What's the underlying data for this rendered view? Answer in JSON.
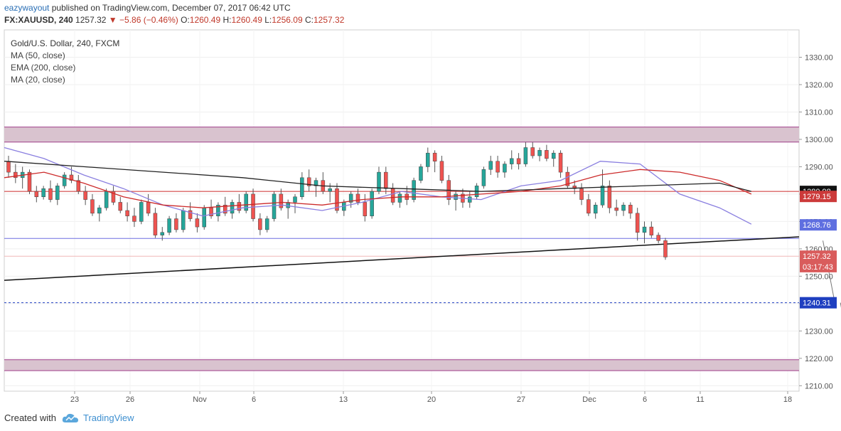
{
  "header": {
    "user": "eazywayout",
    "published_text": "published on TradingView.com, December 07, 2017 06:42 UTC",
    "symbol": "FX:XAUUSD, 240",
    "last": "1257.32",
    "change": "−5.86 (−0.46%)",
    "ohlc": {
      "o_label": "O:",
      "o": "1260.49",
      "h_label": "H:",
      "h": "1260.49",
      "l_label": "L:",
      "l": "1256.09",
      "c_label": "C:",
      "c": "1257.32"
    }
  },
  "legend": {
    "title": "Gold/U.S. Dollar, 240, FXCM",
    "items": [
      "MA (50, close)",
      "EMA (200, close)",
      "MA (20, close)"
    ]
  },
  "footer": {
    "created_with": "Created with",
    "brand": "TradingView"
  },
  "colors": {
    "up": "#26a69a",
    "down": "#ef5350",
    "ma50": "#cc2a2a",
    "ema200": "#222222",
    "ma20": "#8a7fe0",
    "zone_fill": "#d9c3cf",
    "zone_edge": "#a03e8a",
    "support_blue": "#6f6fe0",
    "target_blue": "#1f3fc0"
  },
  "chart_data": {
    "type": "candlestick",
    "timeframe": "240",
    "ylim": [
      1208,
      1340
    ],
    "yticks": [
      "1330.00",
      "1320.00",
      "1310.00",
      "1300.00",
      "1290.00",
      "1280.00",
      "1270.00",
      "1260.00",
      "1250.00",
      "1240.00",
      "1230.00",
      "1220.00",
      "1210.00"
    ],
    "xticks": [
      "23",
      "26",
      "Nov",
      "6",
      "13",
      "20",
      "27",
      "Dec",
      "6",
      "11",
      "18"
    ],
    "price_labels": [
      {
        "text": "1280.98",
        "value": 1280.98,
        "bg": "#111111"
      },
      {
        "text": "1279.15",
        "value": 1279.15,
        "bg": "#cc3a3a"
      },
      {
        "text": "1268.76",
        "value": 1268.76,
        "bg": "#5f6fe0"
      },
      {
        "text": "1257.32",
        "value": 1257.32,
        "bg": "#d95c5c"
      },
      {
        "text": "03:17:43",
        "value": 1253.5,
        "bg": "#d95c5c"
      },
      {
        "text": "1240.31",
        "value": 1240.31,
        "bg": "#1f3fc0"
      }
    ],
    "zones": [
      {
        "top": 1304.5,
        "bottom": 1299.0
      },
      {
        "top": 1219.5,
        "bottom": 1215.5
      }
    ],
    "horizontal_levels": [
      {
        "value": 1280.98,
        "color": "#cc2a2a",
        "style": "solid"
      },
      {
        "value": 1263.8,
        "color": "#6f6fe0",
        "style": "solid"
      },
      {
        "value": 1257.32,
        "color": "#f0b8b8",
        "style": "solid"
      },
      {
        "value": 1240.31,
        "color": "#1f3fc0",
        "style": "dashed"
      }
    ],
    "trendline": {
      "x0": 0,
      "y0": 1248.5,
      "x1": 1,
      "y1": 1264.4
    },
    "projection_arrows": [
      {
        "from": [
          1263,
          1.03
        ],
        "to": [
          1240.31,
          1.045
        ]
      },
      {
        "from": [
          1240.31,
          1.052
        ],
        "to": [
          1216.5,
          1.068
        ]
      }
    ],
    "candles": [
      [
        1292,
        1294,
        1286,
        1288
      ],
      [
        1288,
        1291,
        1284,
        1286
      ],
      [
        1286,
        1290,
        1282,
        1288
      ],
      [
        1288,
        1289,
        1280,
        1281
      ],
      [
        1281,
        1283,
        1277,
        1279
      ],
      [
        1279,
        1283,
        1278,
        1282
      ],
      [
        1282,
        1285,
        1277,
        1278
      ],
      [
        1278,
        1284,
        1276,
        1283
      ],
      [
        1283,
        1288,
        1282,
        1287
      ],
      [
        1287,
        1290,
        1284,
        1285
      ],
      [
        1285,
        1287,
        1280,
        1281
      ],
      [
        1281,
        1283,
        1276,
        1278
      ],
      [
        1278,
        1280,
        1272,
        1273
      ],
      [
        1273,
        1276,
        1270,
        1275
      ],
      [
        1275,
        1282,
        1274,
        1281
      ],
      [
        1281,
        1283,
        1276,
        1277
      ],
      [
        1277,
        1279,
        1273,
        1274
      ],
      [
        1274,
        1277,
        1270,
        1272
      ],
      [
        1272,
        1275,
        1268,
        1270
      ],
      [
        1270,
        1278,
        1269,
        1277
      ],
      [
        1277,
        1280,
        1272,
        1273
      ],
      [
        1273,
        1275,
        1264,
        1265
      ],
      [
        1265,
        1268,
        1263,
        1266
      ],
      [
        1266,
        1272,
        1265,
        1271
      ],
      [
        1271,
        1273,
        1266,
        1267
      ],
      [
        1267,
        1275,
        1266,
        1274
      ],
      [
        1274,
        1277,
        1270,
        1271
      ],
      [
        1271,
        1273,
        1266,
        1268
      ],
      [
        1268,
        1276,
        1267,
        1275
      ],
      [
        1275,
        1278,
        1271,
        1272
      ],
      [
        1272,
        1277,
        1270,
        1276
      ],
      [
        1276,
        1279,
        1272,
        1273
      ],
      [
        1273,
        1278,
        1271,
        1277
      ],
      [
        1277,
        1280,
        1273,
        1274
      ],
      [
        1274,
        1281,
        1273,
        1280
      ],
      [
        1280,
        1282,
        1270,
        1271
      ],
      [
        1271,
        1273,
        1265,
        1267
      ],
      [
        1267,
        1272,
        1266,
        1271
      ],
      [
        1271,
        1281,
        1270,
        1280
      ],
      [
        1280,
        1282,
        1274,
        1275
      ],
      [
        1275,
        1278,
        1271,
        1277
      ],
      [
        1277,
        1280,
        1273,
        1279
      ],
      [
        1279,
        1288,
        1278,
        1286
      ],
      [
        1286,
        1289,
        1281,
        1283
      ],
      [
        1283,
        1286,
        1279,
        1285
      ],
      [
        1285,
        1288,
        1280,
        1281
      ],
      [
        1281,
        1284,
        1277,
        1282
      ],
      [
        1282,
        1284,
        1273,
        1274
      ],
      [
        1274,
        1278,
        1272,
        1277
      ],
      [
        1277,
        1281,
        1275,
        1280
      ],
      [
        1280,
        1282,
        1276,
        1277
      ],
      [
        1277,
        1280,
        1270,
        1272
      ],
      [
        1272,
        1282,
        1271,
        1281
      ],
      [
        1281,
        1290,
        1280,
        1288
      ],
      [
        1288,
        1290,
        1280,
        1282
      ],
      [
        1282,
        1284,
        1276,
        1277
      ],
      [
        1277,
        1281,
        1275,
        1280
      ],
      [
        1280,
        1283,
        1276,
        1278
      ],
      [
        1278,
        1286,
        1277,
        1285
      ],
      [
        1285,
        1291,
        1284,
        1290
      ],
      [
        1290,
        1297,
        1288,
        1295
      ],
      [
        1295,
        1296,
        1288,
        1292
      ],
      [
        1292,
        1294,
        1284,
        1285
      ],
      [
        1285,
        1287,
        1276,
        1278
      ],
      [
        1278,
        1281,
        1274,
        1280
      ],
      [
        1280,
        1282,
        1275,
        1277
      ],
      [
        1277,
        1281,
        1275,
        1279
      ],
      [
        1279,
        1284,
        1278,
        1283
      ],
      [
        1283,
        1290,
        1282,
        1289
      ],
      [
        1289,
        1294,
        1287,
        1292
      ],
      [
        1292,
        1294,
        1286,
        1288
      ],
      [
        1288,
        1292,
        1286,
        1291
      ],
      [
        1291,
        1296,
        1289,
        1293
      ],
      [
        1293,
        1295,
        1289,
        1291
      ],
      [
        1291,
        1299,
        1290,
        1297
      ],
      [
        1297,
        1299,
        1293,
        1294
      ],
      [
        1294,
        1297,
        1292,
        1296
      ],
      [
        1296,
        1298,
        1292,
        1293
      ],
      [
        1293,
        1296,
        1290,
        1295
      ],
      [
        1295,
        1296,
        1286,
        1288
      ],
      [
        1288,
        1290,
        1282,
        1283
      ],
      [
        1283,
        1285,
        1280,
        1282
      ],
      [
        1282,
        1284,
        1276,
        1278
      ],
      [
        1278,
        1280,
        1272,
        1273
      ],
      [
        1273,
        1277,
        1271,
        1276
      ],
      [
        1276,
        1289,
        1275,
        1283
      ],
      [
        1283,
        1285,
        1273,
        1275
      ],
      [
        1275,
        1278,
        1272,
        1274
      ],
      [
        1274,
        1277,
        1272,
        1276
      ],
      [
        1276,
        1277,
        1271,
        1273
      ],
      [
        1273,
        1275,
        1263,
        1266
      ],
      [
        1266,
        1270,
        1262,
        1268
      ],
      [
        1268,
        1270,
        1264,
        1265
      ],
      [
        1265,
        1266,
        1262,
        1263
      ],
      [
        1263,
        1264,
        1256,
        1257
      ]
    ],
    "series": [
      {
        "name": "MA (20, close)",
        "values": [
          [
            0,
            1297
          ],
          [
            0.05,
            1293
          ],
          [
            0.1,
            1287
          ],
          [
            0.15,
            1282
          ],
          [
            0.2,
            1276
          ],
          [
            0.25,
            1272
          ],
          [
            0.3,
            1275
          ],
          [
            0.35,
            1276
          ],
          [
            0.4,
            1274
          ],
          [
            0.45,
            1277
          ],
          [
            0.5,
            1281
          ],
          [
            0.55,
            1279
          ],
          [
            0.6,
            1278
          ],
          [
            0.65,
            1283
          ],
          [
            0.7,
            1285
          ],
          [
            0.75,
            1292
          ],
          [
            0.8,
            1291
          ],
          [
            0.85,
            1280
          ],
          [
            0.9,
            1275
          ],
          [
            0.94,
            1269
          ]
        ]
      },
      {
        "name": "MA (50, close)",
        "values": [
          [
            0,
            1286
          ],
          [
            0.05,
            1288
          ],
          [
            0.1,
            1284
          ],
          [
            0.15,
            1279
          ],
          [
            0.2,
            1276
          ],
          [
            0.25,
            1275
          ],
          [
            0.3,
            1276
          ],
          [
            0.35,
            1277
          ],
          [
            0.4,
            1276
          ],
          [
            0.45,
            1278
          ],
          [
            0.5,
            1279
          ],
          [
            0.55,
            1279
          ],
          [
            0.6,
            1280
          ],
          [
            0.65,
            1281
          ],
          [
            0.7,
            1283
          ],
          [
            0.75,
            1287
          ],
          [
            0.8,
            1289
          ],
          [
            0.85,
            1288
          ],
          [
            0.9,
            1285
          ],
          [
            0.94,
            1280
          ]
        ]
      },
      {
        "name": "EMA (200, close)",
        "values": [
          [
            0,
            1292
          ],
          [
            0.1,
            1290
          ],
          [
            0.2,
            1288
          ],
          [
            0.3,
            1286
          ],
          [
            0.4,
            1283
          ],
          [
            0.5,
            1282
          ],
          [
            0.6,
            1281
          ],
          [
            0.7,
            1282
          ],
          [
            0.8,
            1283
          ],
          [
            0.9,
            1284
          ],
          [
            0.94,
            1281
          ]
        ]
      }
    ]
  }
}
